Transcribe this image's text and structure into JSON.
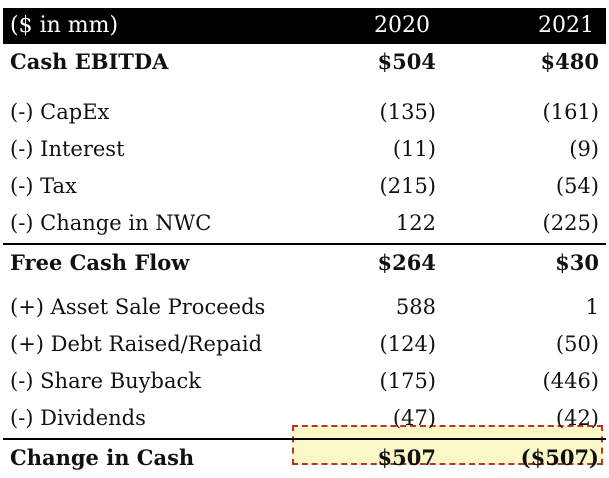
{
  "header": {
    "label": "($ in mm)",
    "col1": "2020",
    "col2": "2021"
  },
  "rows": [
    {
      "label": "Cash EBITDA",
      "v1": "$504",
      "v2": "$480"
    },
    {
      "label": "(-) CapEx",
      "v1": "(135)",
      "v2": "(161)"
    },
    {
      "label": "(-) Interest",
      "v1": "(11)",
      "v2": "(9)"
    },
    {
      "label": "(-) Tax",
      "v1": "(215)",
      "v2": "(54)"
    },
    {
      "label": "(-) Change in NWC",
      "v1": "122",
      "v2": "(225)"
    },
    {
      "label": "Free Cash Flow",
      "v1": "$264",
      "v2": "$30"
    },
    {
      "label": "(+) Asset Sale Proceeds",
      "v1": "588",
      "v2": "1"
    },
    {
      "label": "(+) Debt Raised/Repaid",
      "v1": "(124)",
      "v2": "(50)"
    },
    {
      "label": "(-) Share Buyback",
      "v1": "(175)",
      "v2": "(446)"
    },
    {
      "label": "(-) Dividends",
      "v1": "(47)",
      "v2": "(42)"
    },
    {
      "label": "Change in Cash",
      "v1": "$507",
      "v2": "($507)"
    }
  ],
  "colors": {
    "header_bg": "#000000",
    "highlight_fill": "#fbf7c6",
    "highlight_border": "#b4362d"
  }
}
